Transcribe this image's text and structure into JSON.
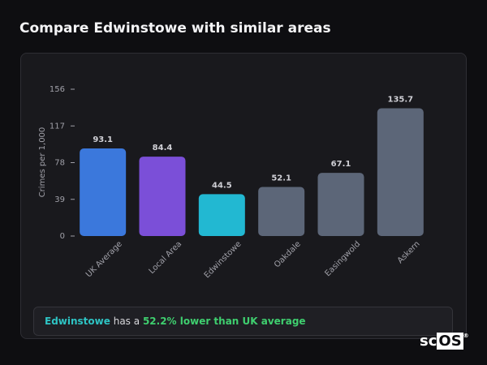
{
  "header": {
    "title": "Compare Edwinstowe with similar areas"
  },
  "chart_data": {
    "type": "bar",
    "y_label": "Crimes per 1,000",
    "categories": [
      "UK Average",
      "Local Area",
      "Edwinstowe",
      "Oakdale",
      "Easingwold",
      "Askern"
    ],
    "values": [
      93.1,
      84.4,
      44.5,
      52.1,
      67.1,
      135.7
    ],
    "colors": [
      "#3b78dc",
      "#7b4fd8",
      "#22b8d2",
      "#5c6678",
      "#5c6678",
      "#5c6678"
    ],
    "ylim": [
      0,
      156
    ],
    "yticks": [
      0,
      39,
      78,
      117,
      156
    ],
    "grid": false
  },
  "footer": {
    "area": "Edwinstowe",
    "text": "has a",
    "highlight": "52.2% lower than UK average"
  },
  "logo": {
    "prefix": "sc",
    "box": "OS",
    "mark": "®"
  }
}
